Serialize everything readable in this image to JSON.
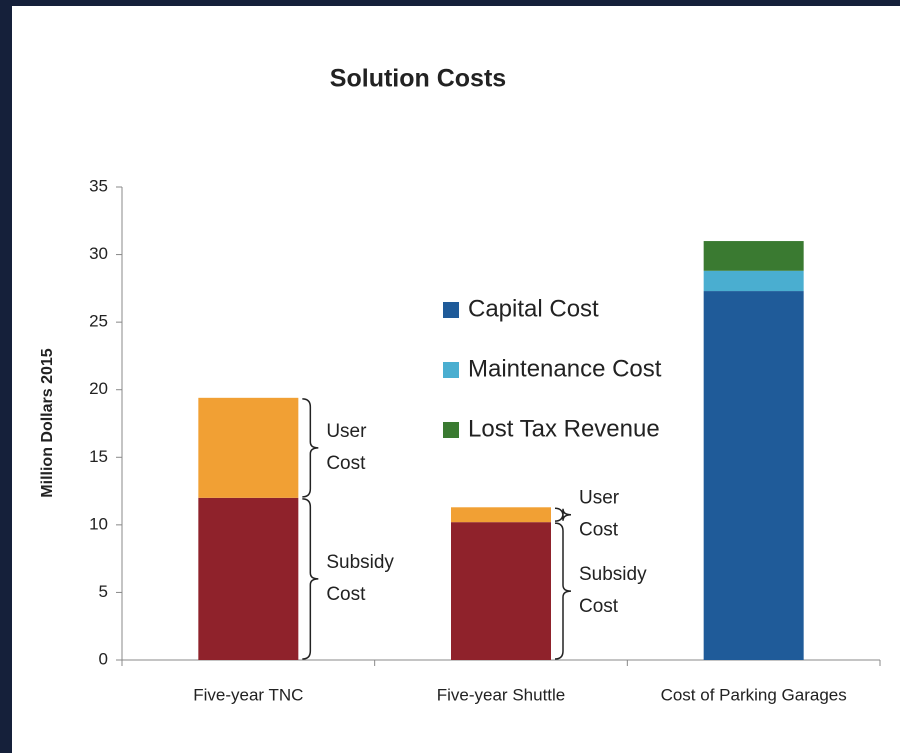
{
  "chart_data": {
    "type": "stacked_bar",
    "title": "Solution Costs",
    "y_label": "Million Dollars 2015",
    "categories": [
      "Five-year TNC",
      "Five-year Shuttle",
      "Cost of Parking Garages"
    ],
    "series": [
      {
        "name": "Subsidy Cost",
        "color": "#8f222b",
        "values": [
          12,
          10.2,
          null
        ],
        "legend": false
      },
      {
        "name": "User Cost",
        "color": "#f1a034",
        "values": [
          7.4,
          1.1,
          null
        ],
        "legend": false
      },
      {
        "name": "Capital Cost",
        "color": "#1f5b99",
        "values": [
          null,
          null,
          27.3
        ],
        "legend": true
      },
      {
        "name": "Maintenance Cost",
        "color": "#4aaed0",
        "values": [
          null,
          null,
          1.5
        ],
        "legend": true
      },
      {
        "name": "Lost Tax Revenue",
        "color": "#3a7a31",
        "values": [
          null,
          null,
          2.2
        ],
        "legend": true
      }
    ],
    "ylim": [
      0,
      35
    ],
    "yticks": [
      0,
      5,
      10,
      15,
      20,
      25,
      30,
      35
    ],
    "grid": false
  }
}
